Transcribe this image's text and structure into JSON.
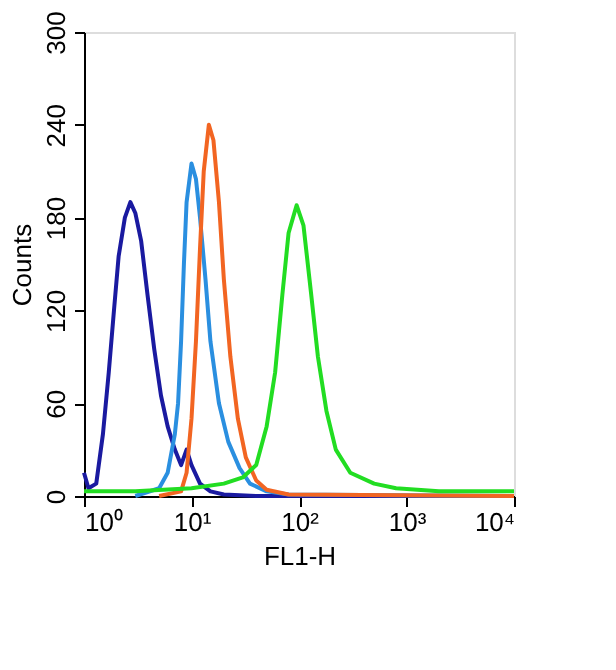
{
  "chart_data": {
    "type": "line",
    "xlabel": "FL1-H",
    "ylabel": "Counts",
    "log": "x",
    "grid": false,
    "legend": false,
    "xlim": [
      1,
      10000
    ],
    "xticks": [
      {
        "value": 1,
        "label": "10⁰"
      },
      {
        "value": 10,
        "label": "10¹"
      },
      {
        "value": 100,
        "label": "10²"
      },
      {
        "value": 1000,
        "label": "10³"
      },
      {
        "value": 10000,
        "label": "10⁴"
      }
    ],
    "ylim": [
      0,
      300
    ],
    "yticks": [
      0,
      60,
      120,
      180,
      240,
      300
    ],
    "series": [
      {
        "color": "#1a1aa0",
        "x": [
          1,
          1.1,
          1.3,
          1.5,
          1.7,
          1.9,
          2.1,
          2.4,
          2.7,
          3.0,
          3.4,
          3.9,
          4.5,
          5.2,
          6,
          7,
          8,
          9,
          10,
          12,
          15,
          20,
          40,
          100,
          10000
        ],
        "values": [
          15,
          5,
          8,
          40,
          80,
          120,
          155,
          180,
          190,
          183,
          165,
          130,
          95,
          65,
          45,
          30,
          20,
          30,
          20,
          8,
          3,
          1,
          0,
          0,
          0
        ]
      },
      {
        "color": "#2a8fe0",
        "x": [
          3,
          5,
          6,
          7,
          7.5,
          8,
          8.5,
          9,
          10,
          11,
          12,
          13.5,
          15,
          18,
          22,
          28,
          35,
          50,
          80,
          10000
        ],
        "values": [
          0,
          5,
          15,
          40,
          60,
          100,
          150,
          190,
          215,
          205,
          180,
          140,
          100,
          60,
          35,
          18,
          8,
          3,
          1,
          0
        ]
      },
      {
        "color": "#f26522",
        "x": [
          5,
          8,
          9,
          10,
          11,
          12,
          13,
          14.5,
          16,
          18,
          20,
          23,
          27,
          32,
          40,
          50,
          80,
          10000
        ],
        "values": [
          0,
          3,
          15,
          50,
          100,
          160,
          210,
          240,
          230,
          190,
          140,
          90,
          50,
          25,
          10,
          4,
          1,
          0
        ]
      },
      {
        "color": "#22dd22",
        "x": [
          1,
          3,
          10,
          20,
          30,
          40,
          50,
          60,
          70,
          80,
          95,
          110,
          130,
          150,
          180,
          220,
          300,
          500,
          800,
          2000,
          10000
        ],
        "values": [
          3,
          3,
          5,
          8,
          12,
          20,
          45,
          80,
          130,
          170,
          188,
          175,
          130,
          90,
          55,
          30,
          15,
          8,
          5,
          3,
          3
        ]
      }
    ]
  }
}
